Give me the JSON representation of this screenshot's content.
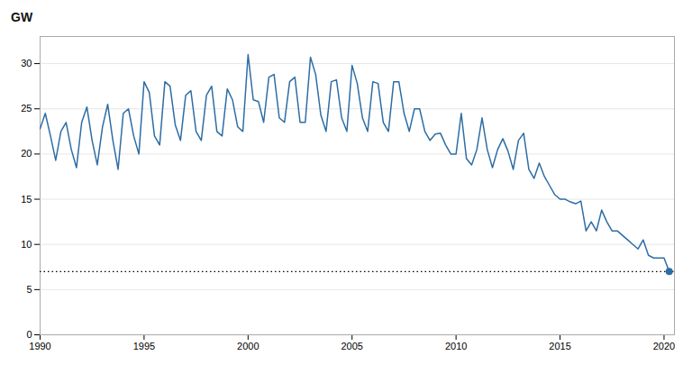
{
  "chart_data": {
    "type": "line",
    "title": "GW",
    "color": "#2E6DA4",
    "xlim": [
      1990,
      2020.5
    ],
    "ylim": [
      0,
      33
    ],
    "xticks": [
      1990,
      1995,
      2000,
      2005,
      2010,
      2015,
      2020
    ],
    "yticks": [
      0,
      5,
      10,
      15,
      20,
      25,
      30
    ],
    "grid": true,
    "hline": {
      "y": 7.0,
      "color": "black",
      "line_style": "dotted"
    },
    "final_point": {
      "x": 2020.25,
      "y": 7.0,
      "color": "#2E6DA4",
      "marker": "o"
    },
    "x": [
      1990.0,
      1990.25,
      1990.5,
      1990.75,
      1991.0,
      1991.25,
      1991.5,
      1991.75,
      1992.0,
      1992.25,
      1992.5,
      1992.75,
      1993.0,
      1993.25,
      1993.5,
      1993.75,
      1994.0,
      1994.25,
      1994.5,
      1994.75,
      1995.0,
      1995.25,
      1995.5,
      1995.75,
      1996.0,
      1996.25,
      1996.5,
      1996.75,
      1997.0,
      1997.25,
      1997.5,
      1997.75,
      1998.0,
      1998.25,
      1998.5,
      1998.75,
      1999.0,
      1999.25,
      1999.5,
      1999.75,
      2000.0,
      2000.25,
      2000.5,
      2000.75,
      2001.0,
      2001.25,
      2001.5,
      2001.75,
      2002.0,
      2002.25,
      2002.5,
      2002.75,
      2003.0,
      2003.25,
      2003.5,
      2003.75,
      2004.0,
      2004.25,
      2004.5,
      2004.75,
      2005.0,
      2005.25,
      2005.5,
      2005.75,
      2006.0,
      2006.25,
      2006.5,
      2006.75,
      2007.0,
      2007.25,
      2007.5,
      2007.75,
      2008.0,
      2008.25,
      2008.5,
      2008.75,
      2009.0,
      2009.25,
      2009.5,
      2009.75,
      2010.0,
      2010.25,
      2010.5,
      2010.75,
      2011.0,
      2011.25,
      2011.5,
      2011.75,
      2012.0,
      2012.25,
      2012.5,
      2012.75,
      2013.0,
      2013.25,
      2013.5,
      2013.75,
      2014.0,
      2014.25,
      2014.5,
      2014.75,
      2015.0,
      2015.25,
      2015.5,
      2015.75,
      2016.0,
      2016.25,
      2016.5,
      2016.75,
      2017.0,
      2017.25,
      2017.5,
      2017.75,
      2018.0,
      2018.25,
      2018.5,
      2018.75,
      2019.0,
      2019.25,
      2019.5,
      2019.75,
      2020.0,
      2020.25
    ],
    "values": [
      22.8,
      24.5,
      22.0,
      19.3,
      22.5,
      23.5,
      20.5,
      18.5,
      23.5,
      25.2,
      21.5,
      18.8,
      23.0,
      25.5,
      21.5,
      18.3,
      24.5,
      25.0,
      22.0,
      20.0,
      28.0,
      26.8,
      22.0,
      21.0,
      28.0,
      27.5,
      23.2,
      21.5,
      26.5,
      27.0,
      22.5,
      21.5,
      26.5,
      27.5,
      22.5,
      22.0,
      27.2,
      26.0,
      23.0,
      22.5,
      31.0,
      26.0,
      25.8,
      23.5,
      28.5,
      28.8,
      24.0,
      23.5,
      28.0,
      28.5,
      23.5,
      23.5,
      30.7,
      28.8,
      24.3,
      22.5,
      28.0,
      28.2,
      24.0,
      22.5,
      29.8,
      27.8,
      24.0,
      22.5,
      28.0,
      27.8,
      23.5,
      22.5,
      28.0,
      28.0,
      24.5,
      22.5,
      25.0,
      25.0,
      22.5,
      21.5,
      22.2,
      22.3,
      21.0,
      20.0,
      20.0,
      24.5,
      19.5,
      18.8,
      20.5,
      24.0,
      20.5,
      18.5,
      20.5,
      21.7,
      20.3,
      18.3,
      21.5,
      22.3,
      18.3,
      17.3,
      19.0,
      17.5,
      16.5,
      15.5,
      15.0,
      15.0,
      14.7,
      14.5,
      14.8,
      11.5,
      12.5,
      11.5,
      13.8,
      12.5,
      11.5,
      11.5,
      11.0,
      10.5,
      10.0,
      9.5,
      10.5,
      8.8,
      8.5,
      8.5,
      8.5,
      7.0
    ]
  }
}
